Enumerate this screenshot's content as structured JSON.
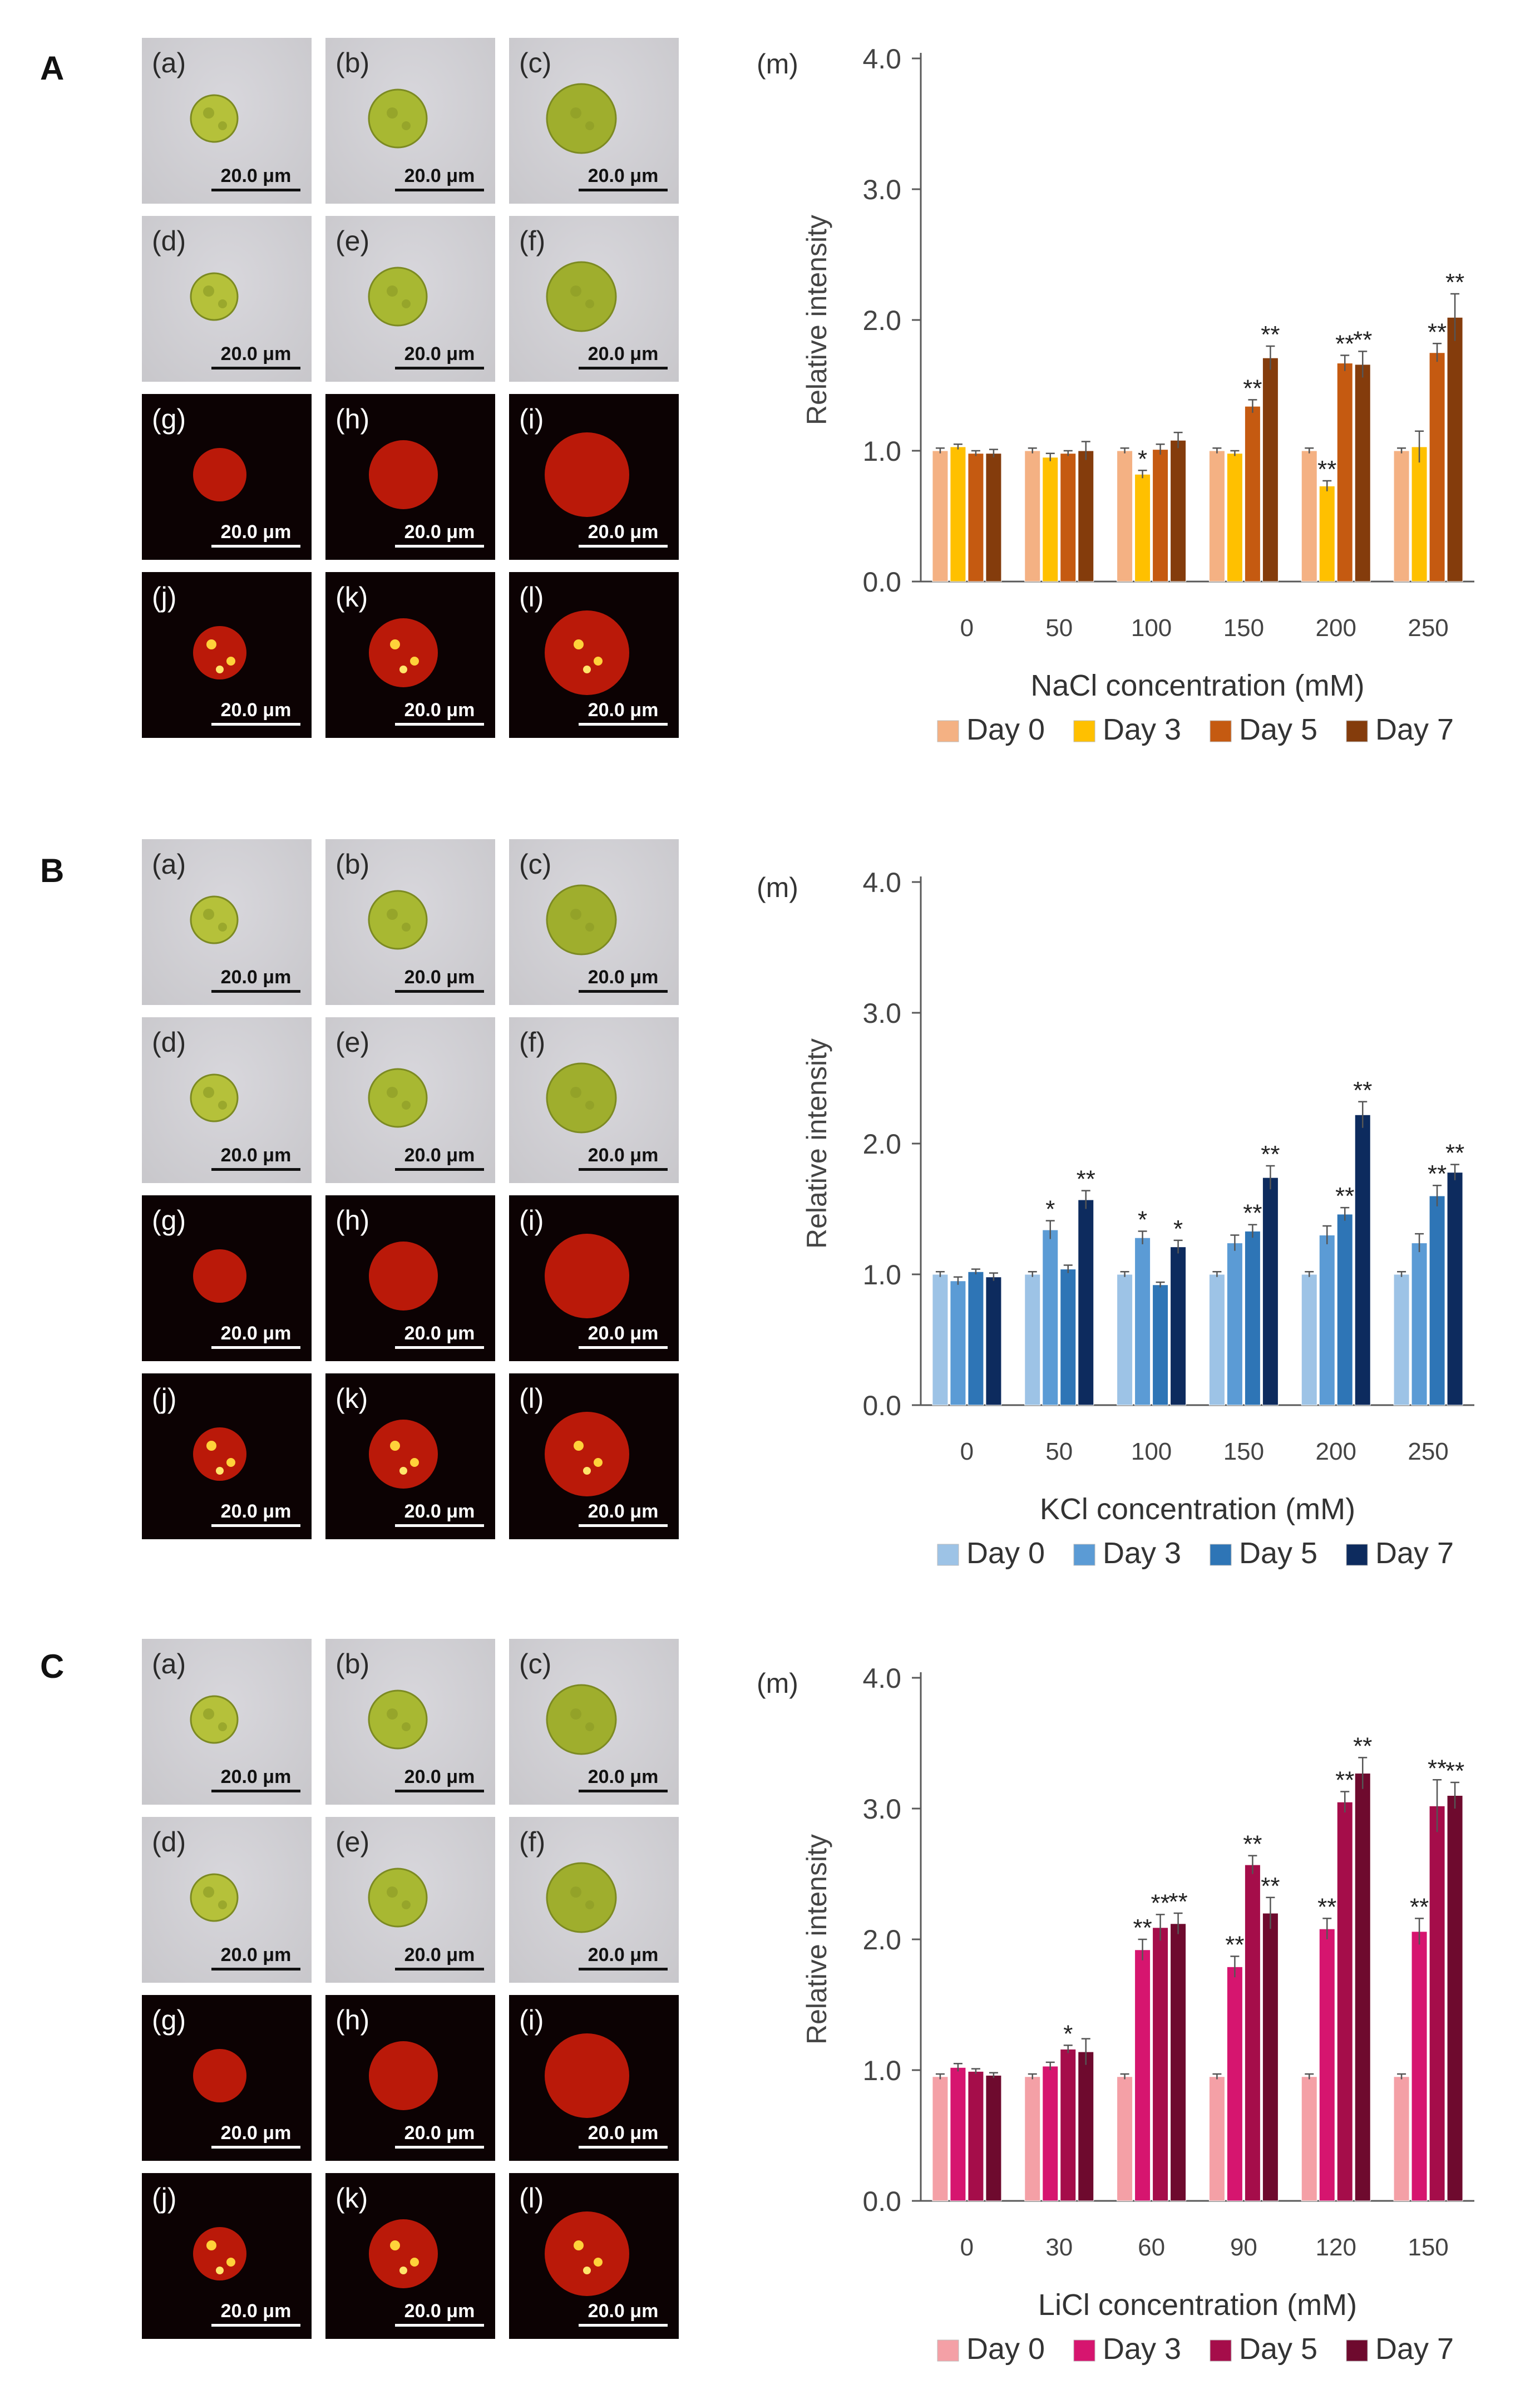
{
  "panels": [
    {
      "letter": "A",
      "tiles": [
        {
          "label": "(a)",
          "scale": "20.0 μm",
          "kind": "bf"
        },
        {
          "label": "(b)",
          "scale": "20.0 μm",
          "kind": "bf"
        },
        {
          "label": "(c)",
          "scale": "20.0 μm",
          "kind": "bf"
        },
        {
          "label": "(d)",
          "scale": "20.0 μm",
          "kind": "bf"
        },
        {
          "label": "(e)",
          "scale": "20.0 μm",
          "kind": "bf"
        },
        {
          "label": "(f)",
          "scale": "20.0 μm",
          "kind": "bf"
        },
        {
          "label": "(g)",
          "scale": "20.0 μm",
          "kind": "fl"
        },
        {
          "label": "(h)",
          "scale": "20.0 μm",
          "kind": "fl"
        },
        {
          "label": "(i)",
          "scale": "20.0 μm",
          "kind": "fl"
        },
        {
          "label": "(j)",
          "scale": "20.0 μm",
          "kind": "fl"
        },
        {
          "label": "(k)",
          "scale": "20.0 μm",
          "kind": "fl"
        },
        {
          "label": "(l)",
          "scale": "20.0 μm",
          "kind": "fl"
        }
      ]
    },
    {
      "letter": "B",
      "tiles": [
        {
          "label": "(a)",
          "scale": "20.0 μm",
          "kind": "bf"
        },
        {
          "label": "(b)",
          "scale": "20.0 μm",
          "kind": "bf"
        },
        {
          "label": "(c)",
          "scale": "20.0 μm",
          "kind": "bf"
        },
        {
          "label": "(d)",
          "scale": "20.0 μm",
          "kind": "bf"
        },
        {
          "label": "(e)",
          "scale": "20.0 μm",
          "kind": "bf"
        },
        {
          "label": "(f)",
          "scale": "20.0 μm",
          "kind": "bf"
        },
        {
          "label": "(g)",
          "scale": "20.0 μm",
          "kind": "fl"
        },
        {
          "label": "(h)",
          "scale": "20.0 μm",
          "kind": "fl"
        },
        {
          "label": "(i)",
          "scale": "20.0 μm",
          "kind": "fl"
        },
        {
          "label": "(j)",
          "scale": "20.0 μm",
          "kind": "fl"
        },
        {
          "label": "(k)",
          "scale": "20.0 μm",
          "kind": "fl"
        },
        {
          "label": "(l)",
          "scale": "20.0 μm",
          "kind": "fl"
        }
      ]
    },
    {
      "letter": "C",
      "tiles": [
        {
          "label": "(a)",
          "scale": "20.0 μm",
          "kind": "bf"
        },
        {
          "label": "(b)",
          "scale": "20.0 μm",
          "kind": "bf"
        },
        {
          "label": "(c)",
          "scale": "20.0 μm",
          "kind": "bf"
        },
        {
          "label": "(d)",
          "scale": "20.0 μm",
          "kind": "bf"
        },
        {
          "label": "(e)",
          "scale": "20.0 μm",
          "kind": "bf"
        },
        {
          "label": "(f)",
          "scale": "20.0 μm",
          "kind": "bf"
        },
        {
          "label": "(g)",
          "scale": "20.0 μm",
          "kind": "fl"
        },
        {
          "label": "(h)",
          "scale": "20.0 μm",
          "kind": "fl"
        },
        {
          "label": "(i)",
          "scale": "20.0 μm",
          "kind": "fl"
        },
        {
          "label": "(j)",
          "scale": "20.0 μm",
          "kind": "fl"
        },
        {
          "label": "(k)",
          "scale": "20.0 μm",
          "kind": "fl"
        },
        {
          "label": "(l)",
          "scale": "20.0 μm",
          "kind": "fl"
        }
      ]
    }
  ],
  "chart_data": [
    {
      "type": "bar",
      "panel_label": "(m)",
      "xlabel": "NaCl concentration (mM)",
      "ylabel": "Relative intensity",
      "categories": [
        "0",
        "50",
        "100",
        "150",
        "200",
        "250"
      ],
      "ylim": [
        0,
        4
      ],
      "yticks": [
        "0.0",
        "1.0",
        "2.0",
        "3.0",
        "4.0"
      ],
      "legend_position": "bottom",
      "series": [
        {
          "name": "Day 0",
          "color": "#f4b183",
          "values": [
            1.0,
            1.0,
            1.0,
            1.0,
            1.0,
            1.0
          ],
          "errors": [
            0.02,
            0.02,
            0.02,
            0.02,
            0.02,
            0.02
          ],
          "sig": [
            "",
            "",
            "",
            "",
            "",
            ""
          ]
        },
        {
          "name": "Day 3",
          "color": "#ffc000",
          "values": [
            1.03,
            0.95,
            0.82,
            0.98,
            0.73,
            1.03
          ],
          "errors": [
            0.02,
            0.03,
            0.03,
            0.02,
            0.04,
            0.12
          ],
          "sig": [
            "",
            "",
            "*",
            "",
            "**",
            ""
          ]
        },
        {
          "name": "Day 5",
          "color": "#c55a11",
          "values": [
            0.98,
            0.98,
            1.01,
            1.34,
            1.67,
            1.75
          ],
          "errors": [
            0.02,
            0.02,
            0.04,
            0.05,
            0.06,
            0.07
          ],
          "sig": [
            "",
            "",
            "",
            "**",
            "**",
            "**"
          ]
        },
        {
          "name": "Day 7",
          "color": "#843c0c",
          "values": [
            0.98,
            1.0,
            1.08,
            1.71,
            1.66,
            2.02
          ],
          "errors": [
            0.03,
            0.07,
            0.06,
            0.09,
            0.1,
            0.18
          ],
          "sig": [
            "",
            "",
            "",
            "**",
            "**",
            "**"
          ]
        }
      ]
    },
    {
      "type": "bar",
      "panel_label": "(m)",
      "xlabel": "KCl concentration (mM)",
      "ylabel": "Relative intensity",
      "categories": [
        "0",
        "50",
        "100",
        "150",
        "200",
        "250"
      ],
      "ylim": [
        0,
        4
      ],
      "yticks": [
        "0.0",
        "1.0",
        "2.0",
        "3.0",
        "4.0"
      ],
      "legend_position": "bottom",
      "series": [
        {
          "name": "Day 0",
          "color": "#9dc3e6",
          "values": [
            1.0,
            1.0,
            1.0,
            1.0,
            1.0,
            1.0
          ],
          "errors": [
            0.02,
            0.02,
            0.02,
            0.02,
            0.02,
            0.02
          ],
          "sig": [
            "",
            "",
            "",
            "",
            "",
            ""
          ]
        },
        {
          "name": "Day 3",
          "color": "#5b9bd5",
          "values": [
            0.95,
            1.34,
            1.28,
            1.24,
            1.3,
            1.24
          ],
          "errors": [
            0.03,
            0.07,
            0.05,
            0.06,
            0.07,
            0.07
          ],
          "sig": [
            "",
            "*",
            "*",
            "",
            "",
            ""
          ]
        },
        {
          "name": "Day 5",
          "color": "#2e75b6",
          "values": [
            1.02,
            1.04,
            0.92,
            1.33,
            1.46,
            1.6
          ],
          "errors": [
            0.02,
            0.03,
            0.02,
            0.05,
            0.05,
            0.08
          ],
          "sig": [
            "",
            "",
            "",
            "**",
            "**",
            "**"
          ]
        },
        {
          "name": "Day 7",
          "color": "#0d2b5e",
          "values": [
            0.98,
            1.57,
            1.21,
            1.74,
            2.22,
            1.78
          ],
          "errors": [
            0.03,
            0.07,
            0.05,
            0.09,
            0.1,
            0.06
          ],
          "sig": [
            "",
            "**",
            "*",
            "**",
            "**",
            "**"
          ]
        }
      ]
    },
    {
      "type": "bar",
      "panel_label": "(m)",
      "xlabel": "LiCl concentration (mM)",
      "ylabel": "Relative intensity",
      "categories": [
        "0",
        "30",
        "60",
        "90",
        "120",
        "150"
      ],
      "ylim": [
        0,
        4
      ],
      "yticks": [
        "0.0",
        "1.0",
        "2.0",
        "3.0",
        "4.0"
      ],
      "legend_position": "bottom",
      "series": [
        {
          "name": "Day 0",
          "color": "#f4a0a6",
          "values": [
            0.95,
            0.95,
            0.95,
            0.95,
            0.95,
            0.95
          ],
          "errors": [
            0.02,
            0.02,
            0.02,
            0.02,
            0.02,
            0.02
          ],
          "sig": [
            "",
            "",
            "",
            "",
            "",
            ""
          ]
        },
        {
          "name": "Day 3",
          "color": "#d6156f",
          "values": [
            1.02,
            1.03,
            1.92,
            1.79,
            2.08,
            2.06
          ],
          "errors": [
            0.03,
            0.03,
            0.08,
            0.08,
            0.08,
            0.1
          ],
          "sig": [
            "",
            "",
            "**",
            "**",
            "**",
            "**"
          ]
        },
        {
          "name": "Day 5",
          "color": "#a50d4a",
          "values": [
            0.99,
            1.16,
            2.09,
            2.57,
            3.05,
            3.02
          ],
          "errors": [
            0.02,
            0.03,
            0.1,
            0.07,
            0.08,
            0.2
          ],
          "sig": [
            "",
            "*",
            "**",
            "**",
            "**",
            "**"
          ]
        },
        {
          "name": "Day 7",
          "color": "#6e0a2e",
          "values": [
            0.96,
            1.14,
            2.12,
            2.2,
            3.27,
            3.1
          ],
          "errors": [
            0.02,
            0.1,
            0.08,
            0.12,
            0.12,
            0.1
          ],
          "sig": [
            "",
            "",
            "**",
            "**",
            "**",
            "**"
          ]
        }
      ]
    }
  ]
}
